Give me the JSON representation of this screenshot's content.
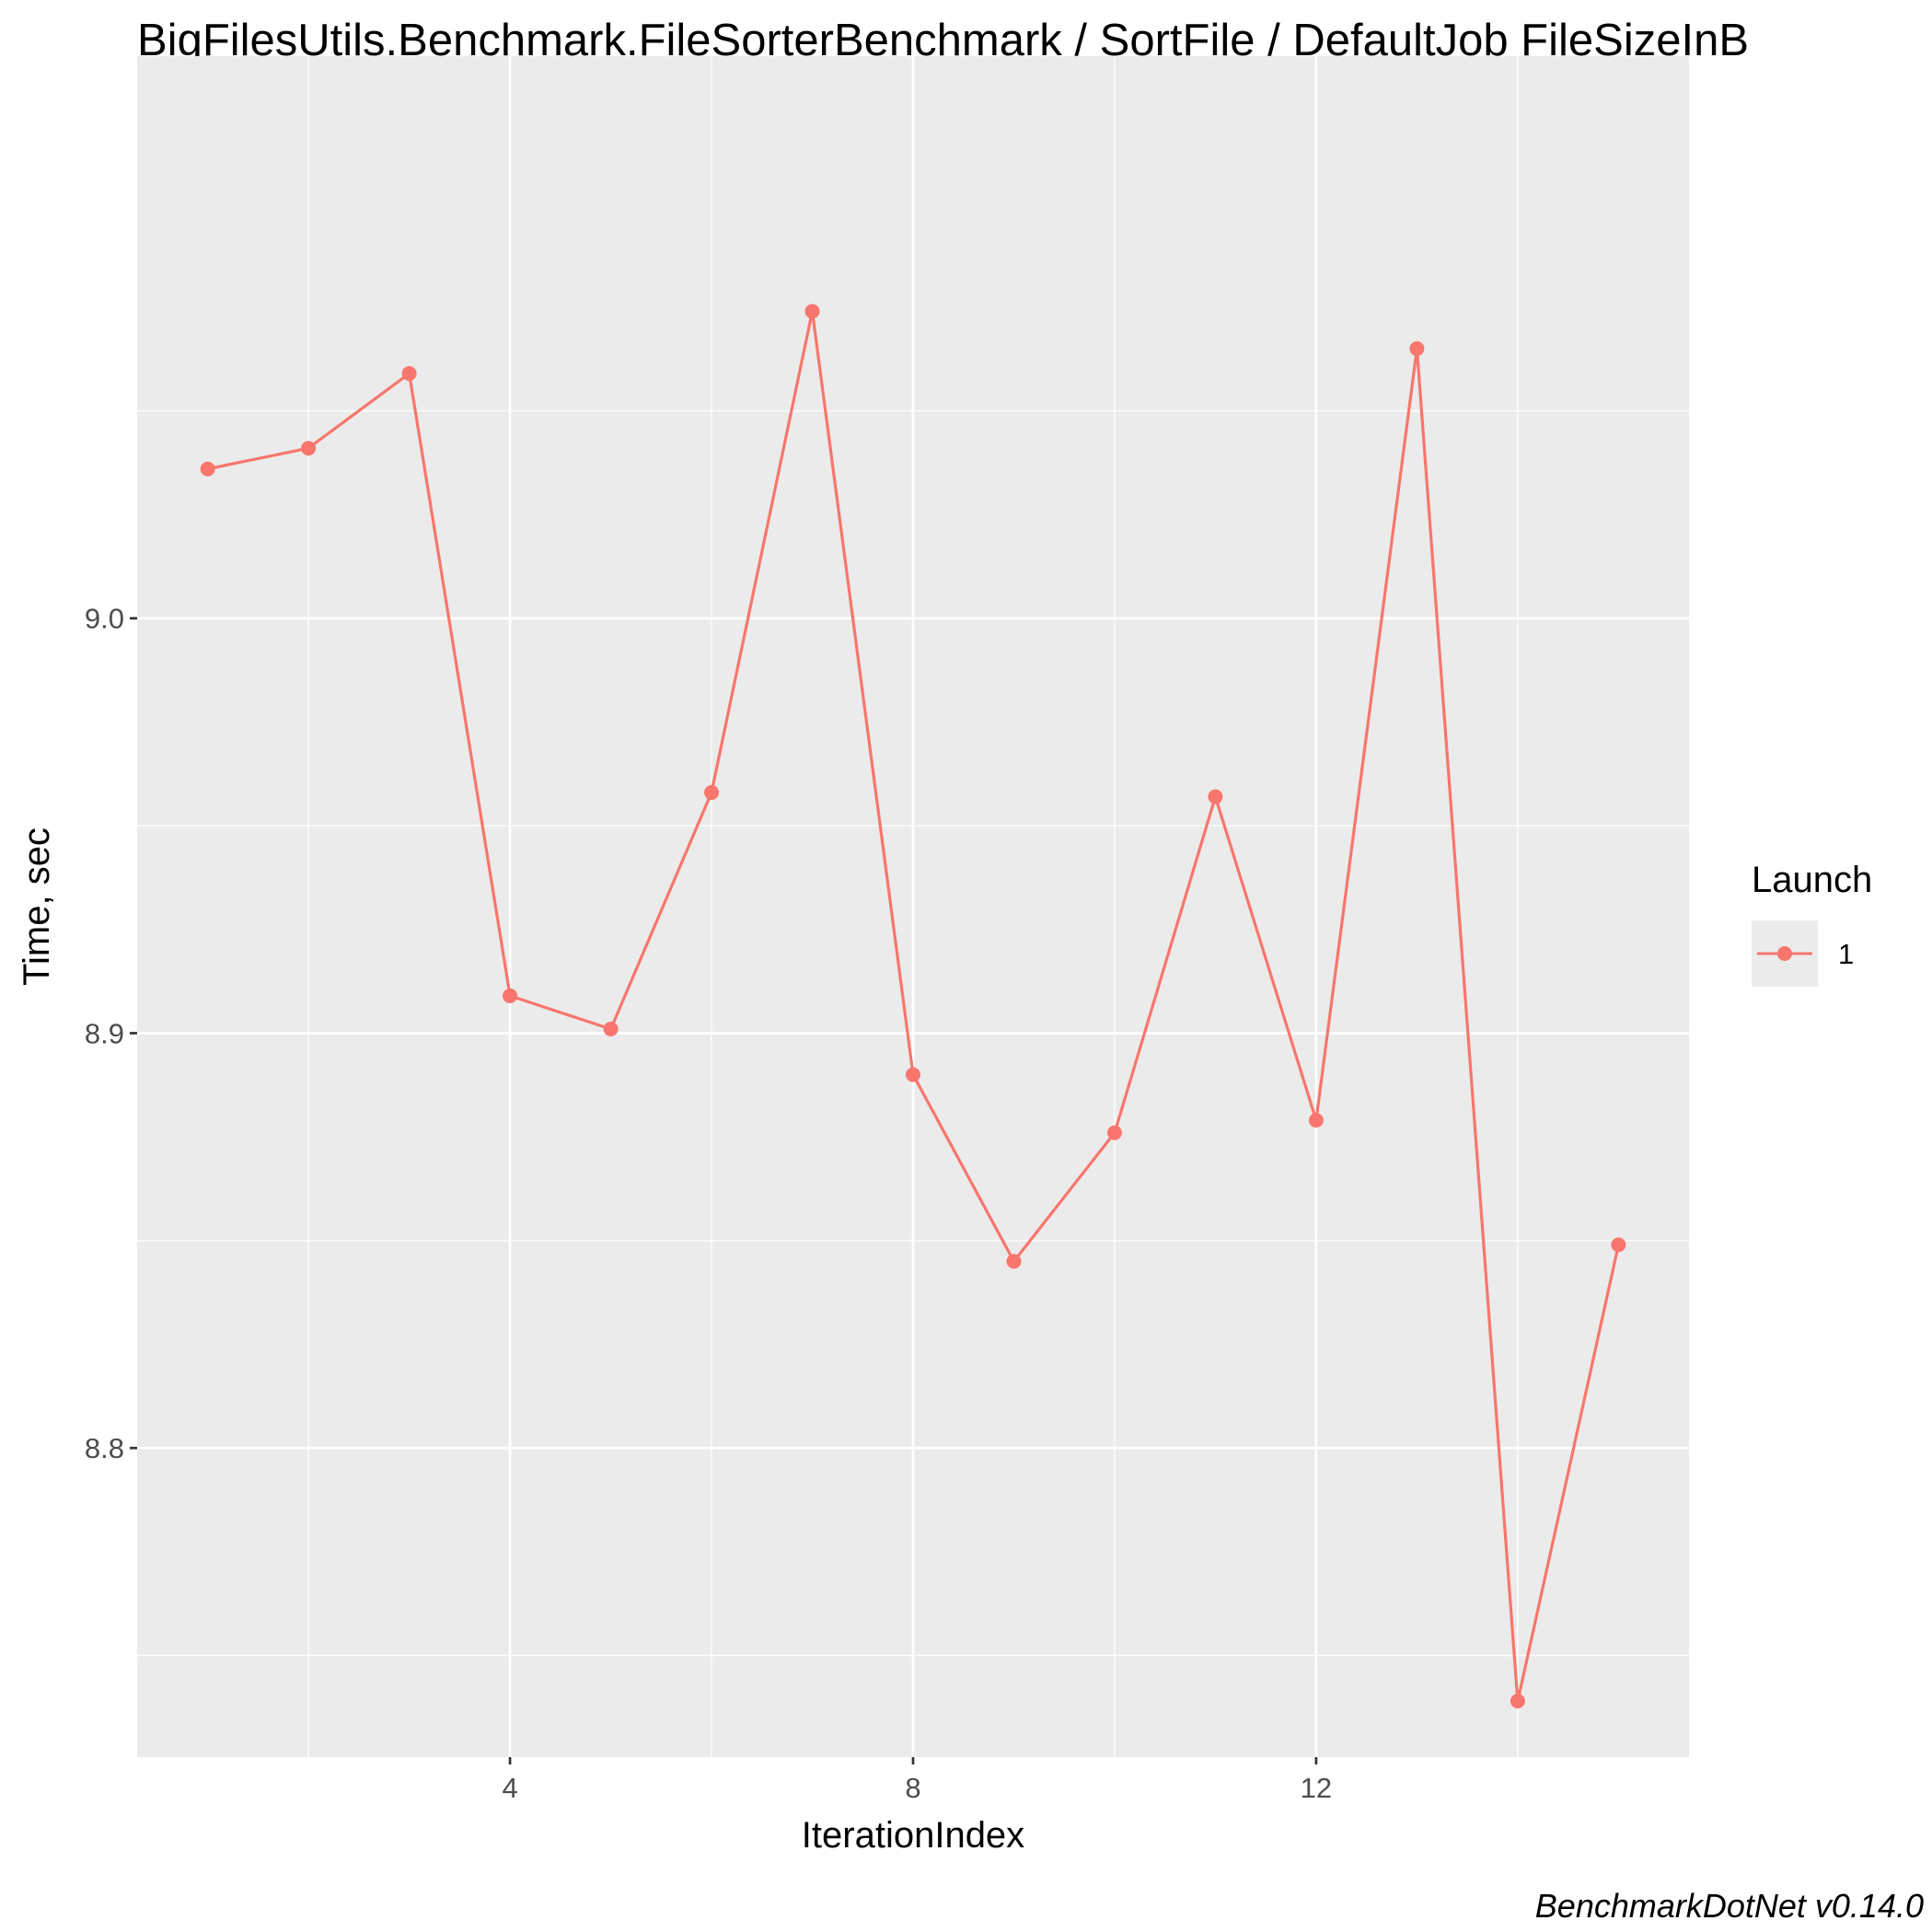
{
  "chart_data": {
    "type": "line",
    "title": "BigFilesUtils.Benchmark.FileSorterBenchmark / SortFile / DefaultJob FileSizeInB",
    "xlabel": "IterationIndex",
    "ylabel": "Time, sec",
    "caption": "BenchmarkDotNet v0.14.0",
    "xlim": [
      0.3,
      15.7
    ],
    "ylim": [
      8.7255,
      9.1355
    ],
    "x_ticks": [
      4,
      8,
      12
    ],
    "x_tick_labels": [
      "4",
      "8",
      "12"
    ],
    "y_ticks": [
      8.8,
      8.9,
      9.0
    ],
    "y_tick_labels": [
      "8.8",
      "8.9",
      "9.0"
    ],
    "x_minor": [
      2,
      6,
      10,
      14
    ],
    "y_minor": [
      8.75,
      8.85,
      8.95,
      9.05
    ],
    "grid": true,
    "legend": {
      "title": "Launch",
      "position": "right",
      "entries": [
        "1"
      ]
    },
    "series": [
      {
        "name": "1",
        "color": "#f8766d",
        "x": [
          1,
          2,
          3,
          4,
          5,
          6,
          7,
          8,
          9,
          10,
          11,
          12,
          13,
          14,
          15
        ],
        "values": [
          9.036,
          9.041,
          9.059,
          8.909,
          8.901,
          8.958,
          9.074,
          8.89,
          8.845,
          8.876,
          8.957,
          8.879,
          9.065,
          8.739,
          8.849
        ]
      }
    ]
  },
  "colors": {
    "panel_background": "#ebebeb",
    "grid": "#ffffff",
    "line": "#f8766d"
  }
}
